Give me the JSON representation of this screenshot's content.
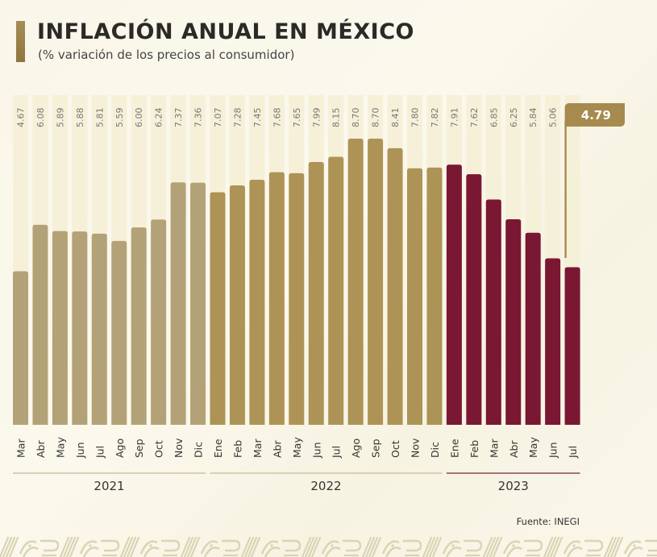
{
  "header": {
    "title": "INFLACIÓN ANUAL EN MÉXICO",
    "subtitle": "(% variación de los precios al consumidor)"
  },
  "source": "Fuente: INEGI",
  "colors": {
    "bar_2021": "#b3a277",
    "bar_2022": "#ad9356",
    "bar_2023": "#7a1733",
    "track": "#f4eed6",
    "callout": "#a68a4e",
    "year_line_2021": "#c9c6a6",
    "year_line_2022": "#c9c6a6",
    "year_line_2023": "#8a4a55"
  },
  "chart_data": {
    "type": "bar",
    "title": "INFLACIÓN ANUAL EN MÉXICO",
    "subtitle": "(% variación de los precios al consumidor)",
    "xlabel": "",
    "ylabel": "",
    "ylim": [
      0,
      8.7
    ],
    "grid": false,
    "legend": "none",
    "categories": [
      "Mar",
      "Abr",
      "May",
      "Jun",
      "Jul",
      "Ago",
      "Sep",
      "Oct",
      "Nov",
      "Dic",
      "Ene",
      "Feb",
      "Mar",
      "Abr",
      "May",
      "Jun",
      "Jul",
      "Ago",
      "Sep",
      "Oct",
      "Nov",
      "Dic",
      "Ene",
      "Feb",
      "Mar",
      "Abr",
      "May",
      "Jun",
      "Jul"
    ],
    "years": [
      {
        "label": "2021",
        "start": 0,
        "end": 9
      },
      {
        "label": "2022",
        "start": 10,
        "end": 21
      },
      {
        "label": "2023",
        "start": 22,
        "end": 28
      }
    ],
    "values": [
      4.67,
      6.08,
      5.89,
      5.88,
      5.81,
      5.59,
      6.0,
      6.24,
      7.37,
      7.36,
      7.07,
      7.28,
      7.45,
      7.68,
      7.65,
      7.99,
      8.15,
      8.7,
      8.7,
      8.41,
      7.8,
      7.82,
      7.91,
      7.62,
      6.85,
      6.25,
      5.84,
      5.06,
      4.79
    ],
    "value_labels": [
      "4.67",
      "6.08",
      "5.89",
      "5.88",
      "5.81",
      "5.59",
      "6.00",
      "6.24",
      "7.37",
      "7.36",
      "7.07",
      "7.28",
      "7.45",
      "7.68",
      "7.65",
      "7.99",
      "8.15",
      "8.70",
      "8.70",
      "8.41",
      "7.80",
      "7.82",
      "7.91",
      "7.62",
      "6.85",
      "6.25",
      "5.84",
      "5.06",
      ""
    ],
    "callout": {
      "index": 28,
      "label": "4.79"
    }
  }
}
